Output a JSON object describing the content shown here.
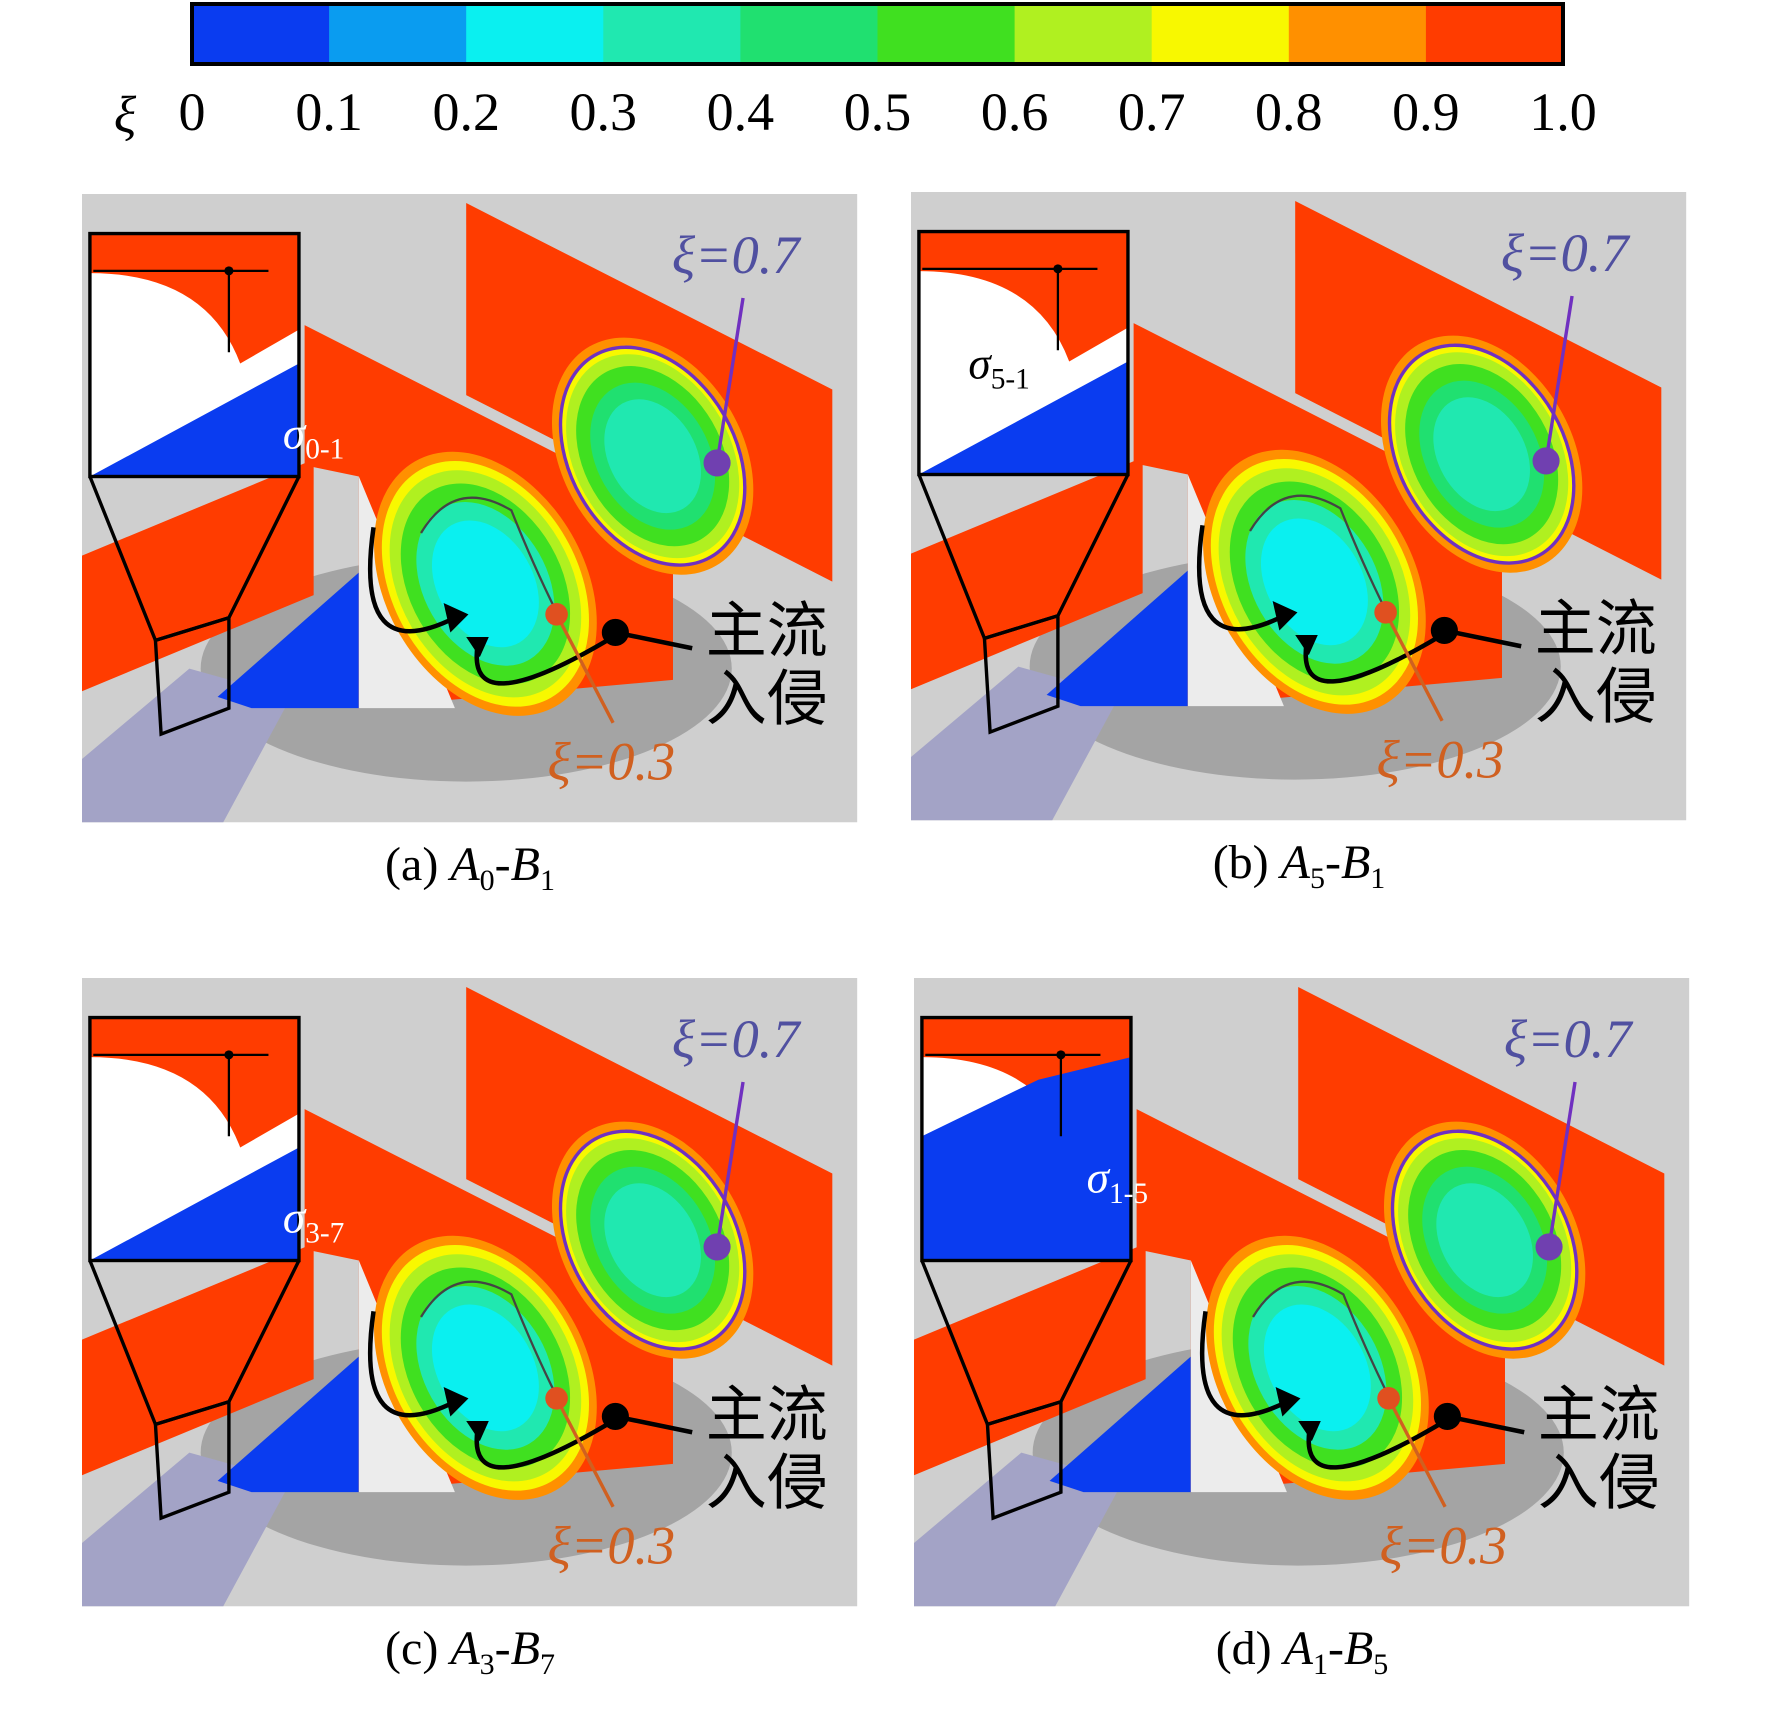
{
  "colorbar": {
    "symbol": "ξ",
    "ticks": [
      "0",
      "0.1",
      "0.2",
      "0.3",
      "0.4",
      "0.5",
      "0.6",
      "0.7",
      "0.8",
      "0.9",
      "1.0"
    ],
    "colors": [
      "#0a3cf0",
      "#0a9cf0",
      "#0af0f0",
      "#20e8b0",
      "#20e070",
      "#40e020",
      "#b0f020",
      "#f8f800",
      "#ff9000",
      "#ff3c00"
    ]
  },
  "panels": [
    {
      "inset": {
        "symbol": "σ",
        "sub": "0-1"
      },
      "contour_high": "ξ=0.7",
      "contour_low": "ξ=0.3",
      "flow": [
        "主流",
        "入侵"
      ],
      "caption": {
        "label": "(a)",
        "a": "A",
        "a_sub": "0",
        "sep": "-",
        "b": "B",
        "b_sub": "1"
      }
    },
    {
      "inset": {
        "symbol": "σ",
        "sub": "5-1"
      },
      "contour_high": "ξ=0.7",
      "contour_low": "ξ=0.3",
      "flow": [
        "主流",
        "入侵"
      ],
      "caption": {
        "label": "(b)",
        "a": "A",
        "a_sub": "5",
        "sep": "-",
        "b": "B",
        "b_sub": "1"
      }
    },
    {
      "inset": {
        "symbol": "σ",
        "sub": "3-7"
      },
      "contour_high": "ξ=0.7",
      "contour_low": "ξ=0.3",
      "flow": [
        "主流",
        "入侵"
      ],
      "caption": {
        "label": "(c)",
        "a": "A",
        "a_sub": "3",
        "sep": "-",
        "b": "B",
        "b_sub": "7"
      }
    },
    {
      "inset": {
        "symbol": "σ",
        "sub": "1-5"
      },
      "contour_high": "ξ=0.7",
      "contour_low": "ξ=0.3",
      "flow": [
        "主流",
        "入侵"
      ],
      "caption": {
        "label": "(d)",
        "a": "A",
        "a_sub": "1",
        "sep": "-",
        "b": "B",
        "b_sub": "5"
      }
    }
  ]
}
